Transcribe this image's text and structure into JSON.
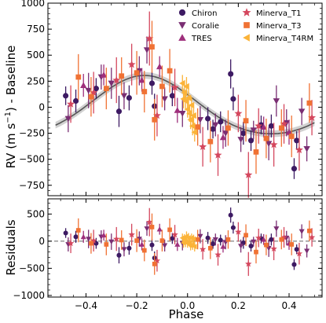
{
  "chart_data": {
    "type": "scatter",
    "title": "",
    "xlabel": "Phase",
    "top_panel": {
      "ylabel": "RV (m s$^{-1}$) - Baseline",
      "ylabel_parts": [
        "RV (m s",
        "−1",
        ") - Baseline"
      ],
      "ylim": [
        -850,
        1000
      ],
      "yticks": [
        -750,
        -500,
        -250,
        0,
        250,
        500,
        750,
        1000
      ],
      "ytick_labels": [
        "−750",
        "−500",
        "−250",
        "0",
        "250",
        "500",
        "750",
        "1000"
      ]
    },
    "bottom_panel": {
      "ylabel": "Residuals",
      "ylim": [
        -1030,
        780
      ],
      "yticks": [
        -1000,
        -500,
        0,
        500
      ],
      "ytick_labels": [
        "−1000",
        "−500",
        "0",
        "500"
      ],
      "zero_line": true
    },
    "xlim": [
      -0.55,
      0.53
    ],
    "xticks": [
      -0.4,
      -0.2,
      0.0,
      0.2,
      0.4
    ],
    "xtick_labels": [
      "−0.4",
      "−0.2",
      "0.0",
      "0.2",
      "0.4"
    ],
    "model": {
      "name": "",
      "k": 280,
      "mu": -0.17,
      "color": "#555555",
      "band_color": "#9a9a9a"
    },
    "legend": {
      "placement": "top-right",
      "columns": 2
    },
    "series": [
      {
        "name": "Chiron",
        "marker": "circle",
        "color": "#3d1a63",
        "points": [
          {
            "x": -0.48,
            "y": 110,
            "err": 90,
            "r": 150
          },
          {
            "x": -0.44,
            "y": 60,
            "err": 110,
            "r": 80
          },
          {
            "x": -0.36,
            "y": 180,
            "err": 100,
            "r": -40
          },
          {
            "x": -0.27,
            "y": -40,
            "err": 150,
            "r": -260
          },
          {
            "x": -0.23,
            "y": 90,
            "err": 120,
            "r": -130
          },
          {
            "x": -0.14,
            "y": 230,
            "err": 110,
            "r": -70
          },
          {
            "x": -0.13,
            "y": 10,
            "err": 120,
            "r": -310
          },
          {
            "x": -0.06,
            "y": 110,
            "err": 100,
            "r": 50
          },
          {
            "x": 0.08,
            "y": -110,
            "err": 110,
            "r": 60
          },
          {
            "x": 0.1,
            "y": -210,
            "err": 90,
            "r": -50
          },
          {
            "x": 0.13,
            "y": -140,
            "err": 100,
            "r": 20
          },
          {
            "x": 0.17,
            "y": 320,
            "err": 140,
            "r": 480
          },
          {
            "x": 0.18,
            "y": 80,
            "err": 110,
            "r": 250
          },
          {
            "x": 0.22,
            "y": -250,
            "err": 110,
            "r": -30
          },
          {
            "x": 0.25,
            "y": -320,
            "err": 100,
            "r": -90
          },
          {
            "x": 0.29,
            "y": -170,
            "err": 90,
            "r": 50
          },
          {
            "x": 0.33,
            "y": -180,
            "err": 110,
            "r": 30
          },
          {
            "x": 0.42,
            "y": -590,
            "err": 100,
            "r": -430
          },
          {
            "x": 0.43,
            "y": -320,
            "err": 90,
            "r": -150
          }
        ]
      },
      {
        "name": "Coralie",
        "marker": "triangle-down",
        "color": "#7a2e73",
        "points": [
          {
            "x": -0.47,
            "y": -110,
            "err": 130,
            "r": -60
          },
          {
            "x": -0.39,
            "y": 160,
            "err": 170,
            "r": 40
          },
          {
            "x": -0.34,
            "y": 290,
            "err": 120,
            "r": 80
          },
          {
            "x": -0.3,
            "y": 230,
            "err": 150,
            "r": -10
          },
          {
            "x": -0.25,
            "y": 110,
            "err": 130,
            "r": -150
          },
          {
            "x": -0.19,
            "y": 350,
            "err": 140,
            "r": 40
          },
          {
            "x": -0.16,
            "y": 550,
            "err": 130,
            "r": 230
          },
          {
            "x": -0.09,
            "y": 80,
            "err": 110,
            "r": -80
          },
          {
            "x": -0.02,
            "y": -60,
            "err": 130,
            "r": -40
          },
          {
            "x": 0.05,
            "y": -120,
            "err": 130,
            "r": 90
          },
          {
            "x": 0.11,
            "y": -170,
            "err": 110,
            "r": 30
          },
          {
            "x": 0.15,
            "y": -250,
            "err": 130,
            "r": -20
          },
          {
            "x": 0.21,
            "y": -310,
            "err": 120,
            "r": -90
          },
          {
            "x": 0.26,
            "y": -220,
            "err": 90,
            "r": -10
          },
          {
            "x": 0.32,
            "y": -350,
            "err": 160,
            "r": -130
          },
          {
            "x": 0.35,
            "y": 60,
            "err": 150,
            "r": 230
          },
          {
            "x": 0.39,
            "y": -150,
            "err": 130,
            "r": 60
          },
          {
            "x": 0.45,
            "y": -40,
            "err": 130,
            "r": 180
          },
          {
            "x": 0.47,
            "y": -400,
            "err": 120,
            "r": -180
          }
        ]
      },
      {
        "name": "TRES",
        "marker": "triangle-up",
        "color": "#9e2f7c",
        "points": [
          {
            "x": -0.41,
            "y": 210,
            "err": 110,
            "r": 80
          },
          {
            "x": -0.33,
            "y": 310,
            "err": 100,
            "r": 110
          },
          {
            "x": -0.18,
            "y": 260,
            "err": 110,
            "r": -60
          },
          {
            "x": -0.11,
            "y": 390,
            "err": 100,
            "r": 220
          },
          {
            "x": -0.04,
            "y": -30,
            "err": 120,
            "r": -60
          },
          {
            "x": 0.14,
            "y": -290,
            "err": 110,
            "r": -100
          },
          {
            "x": 0.3,
            "y": -190,
            "err": 100,
            "r": 30
          },
          {
            "x": 0.4,
            "y": -240,
            "err": 120,
            "r": -40
          }
        ]
      },
      {
        "name": "Minerva_T1",
        "marker": "star",
        "color": "#d4475e",
        "points": [
          {
            "x": -0.46,
            "y": 30,
            "err": 180,
            "r": -40
          },
          {
            "x": -0.37,
            "y": 140,
            "err": 200,
            "r": 10
          },
          {
            "x": -0.28,
            "y": 260,
            "err": 220,
            "r": 40
          },
          {
            "x": -0.22,
            "y": 410,
            "err": 200,
            "r": 120
          },
          {
            "x": -0.15,
            "y": 660,
            "err": 260,
            "r": 350
          },
          {
            "x": -0.12,
            "y": -80,
            "err": 200,
            "r": -360
          },
          {
            "x": -0.05,
            "y": 190,
            "err": 180,
            "r": 120
          },
          {
            "x": 0.06,
            "y": -380,
            "err": 190,
            "r": -150
          },
          {
            "x": 0.12,
            "y": -460,
            "err": 200,
            "r": -250
          },
          {
            "x": 0.2,
            "y": -60,
            "err": 180,
            "r": 170
          },
          {
            "x": 0.24,
            "y": -650,
            "err": 220,
            "r": -420
          },
          {
            "x": 0.28,
            "y": -180,
            "err": 170,
            "r": 60
          },
          {
            "x": 0.34,
            "y": -360,
            "err": 210,
            "r": -140
          },
          {
            "x": 0.38,
            "y": -160,
            "err": 190,
            "r": 70
          },
          {
            "x": 0.44,
            "y": -410,
            "err": 200,
            "r": -230
          },
          {
            "x": 0.49,
            "y": -100,
            "err": 170,
            "r": 70
          }
        ]
      },
      {
        "name": "Minerva_T3",
        "marker": "square",
        "color": "#f07234",
        "points": [
          {
            "x": -0.43,
            "y": 290,
            "err": 220,
            "r": 200
          },
          {
            "x": -0.38,
            "y": 100,
            "err": 190,
            "r": -40
          },
          {
            "x": -0.32,
            "y": 180,
            "err": 200,
            "r": -60
          },
          {
            "x": -0.26,
            "y": 300,
            "err": 180,
            "r": 20
          },
          {
            "x": -0.2,
            "y": 330,
            "err": 210,
            "r": 10
          },
          {
            "x": -0.17,
            "y": 150,
            "err": 200,
            "r": -170
          },
          {
            "x": -0.14,
            "y": 580,
            "err": 250,
            "r": 260
          },
          {
            "x": -0.13,
            "y": -120,
            "err": 200,
            "r": -420
          },
          {
            "x": -0.1,
            "y": 200,
            "err": 200,
            "r": 10
          },
          {
            "x": -0.07,
            "y": 350,
            "err": 210,
            "r": 210
          },
          {
            "x": 0.04,
            "y": -190,
            "err": 180,
            "r": 30
          },
          {
            "x": 0.09,
            "y": -330,
            "err": 200,
            "r": -130
          },
          {
            "x": 0.16,
            "y": -200,
            "err": 170,
            "r": 30
          },
          {
            "x": 0.23,
            "y": -130,
            "err": 200,
            "r": 110
          },
          {
            "x": 0.27,
            "y": -430,
            "err": 210,
            "r": -200
          },
          {
            "x": 0.31,
            "y": -300,
            "err": 190,
            "r": -70
          },
          {
            "x": 0.37,
            "y": -200,
            "err": 180,
            "r": 30
          },
          {
            "x": 0.41,
            "y": -280,
            "err": 200,
            "r": -60
          },
          {
            "x": 0.48,
            "y": 40,
            "err": 190,
            "r": 190
          }
        ]
      },
      {
        "name": "Minerva_T4RM",
        "marker": "triangle-left",
        "color": "#fbb338",
        "points": [
          {
            "x": -0.012,
            "y": 140,
            "err": 80,
            "r": 50
          },
          {
            "x": -0.008,
            "y": 60,
            "err": 90,
            "r": -20
          },
          {
            "x": -0.004,
            "y": 200,
            "err": 90,
            "r": 90
          },
          {
            "x": 0.0,
            "y": -20,
            "err": 80,
            "r": -40
          },
          {
            "x": 0.004,
            "y": 90,
            "err": 90,
            "r": 60
          },
          {
            "x": 0.008,
            "y": -60,
            "err": 80,
            "r": -30
          },
          {
            "x": 0.012,
            "y": -120,
            "err": 90,
            "r": -80
          },
          {
            "x": 0.016,
            "y": 20,
            "err": 80,
            "r": 60
          },
          {
            "x": 0.02,
            "y": -180,
            "err": 90,
            "r": -70
          },
          {
            "x": 0.024,
            "y": -80,
            "err": 80,
            "r": 40
          },
          {
            "x": -0.016,
            "y": 80,
            "err": 90,
            "r": -30
          },
          {
            "x": -0.02,
            "y": 230,
            "err": 80,
            "r": 60
          },
          {
            "x": 0.028,
            "y": -240,
            "err": 90,
            "r": -100
          }
        ]
      }
    ]
  }
}
